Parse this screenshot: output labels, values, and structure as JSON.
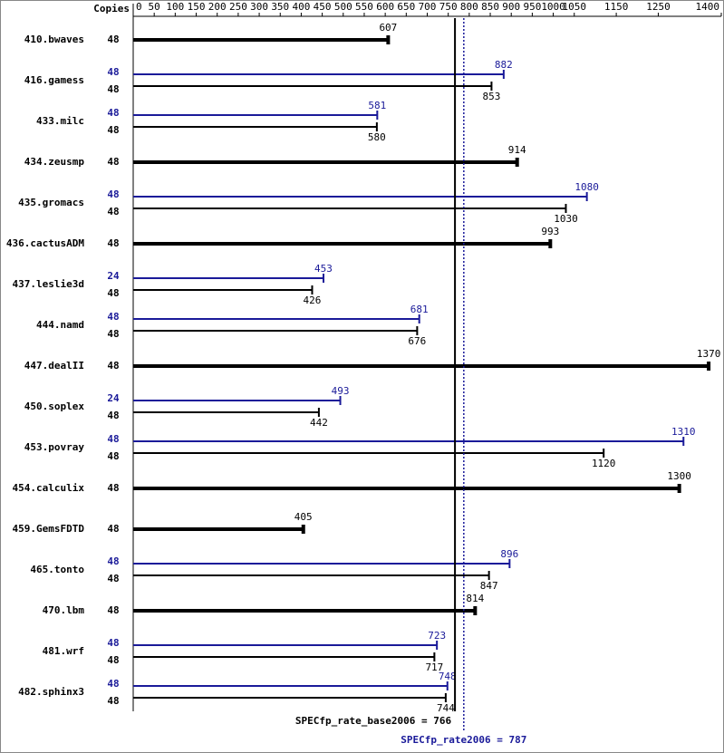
{
  "chart_data": {
    "type": "spec-bar",
    "copies_header": "Copies",
    "categories": [
      "410.bwaves",
      "416.gamess",
      "433.milc",
      "434.zeusmp",
      "435.gromacs",
      "436.cactusADM",
      "437.leslie3d",
      "444.namd",
      "447.dealII",
      "450.soplex",
      "453.povray",
      "454.calculix",
      "459.GemsFDTD",
      "465.tonto",
      "470.lbm",
      "481.wrf",
      "482.sphinx3"
    ],
    "series": [
      {
        "name": "base",
        "color": "#000000",
        "copies": [
          48,
          48,
          48,
          48,
          48,
          48,
          48,
          48,
          48,
          48,
          48,
          48,
          48,
          48,
          48,
          48,
          48
        ],
        "values": [
          607,
          853,
          580,
          914,
          1030,
          993,
          426,
          676,
          1370,
          442,
          1120,
          1300,
          405,
          847,
          814,
          717,
          744
        ]
      },
      {
        "name": "peak",
        "color": "#1a1a99",
        "copies": [
          null,
          48,
          48,
          null,
          48,
          null,
          24,
          48,
          null,
          24,
          48,
          null,
          null,
          48,
          null,
          48,
          48
        ],
        "values": [
          null,
          882,
          581,
          null,
          1080,
          null,
          453,
          681,
          null,
          493,
          1310,
          null,
          null,
          896,
          null,
          723,
          748
        ]
      }
    ],
    "reference_lines": [
      {
        "label": "SPECfp_rate_base2006 = 766",
        "value": 766,
        "color": "#000000",
        "style": "solid"
      },
      {
        "label": "SPECfp_rate2006 = 787",
        "value": 787,
        "color": "#1a1a99",
        "style": "dotted"
      }
    ],
    "xlim": [
      0,
      1400
    ],
    "xticks": [
      0,
      50,
      100,
      150,
      200,
      250,
      300,
      350,
      400,
      450,
      500,
      550,
      600,
      650,
      700,
      750,
      800,
      850,
      900,
      950,
      1000,
      1050,
      1150,
      1250,
      1400
    ]
  }
}
